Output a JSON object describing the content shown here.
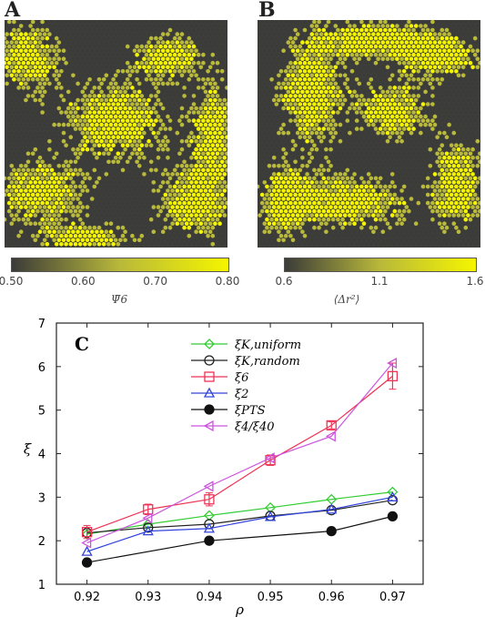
{
  "panels": {
    "a_label": "A",
    "b_label": "B",
    "c_label": "C"
  },
  "colorbar_a": {
    "label": "Ψ̄6",
    "ticks": [
      "0.50",
      "0.60",
      "0.70",
      "0.80"
    ],
    "range": [
      0.5,
      0.8
    ],
    "colors": [
      "#3b3b39",
      "#b9b93a",
      "#f5f500"
    ]
  },
  "colorbar_b": {
    "label": "⟨Δr²⟩",
    "ticks": [
      "0.6",
      "1.1",
      "1.6"
    ],
    "range": [
      0.6,
      1.6
    ],
    "colors": [
      "#3b3b39",
      "#b9b93a",
      "#f5f500"
    ]
  },
  "chart_data": {
    "type": "line",
    "xlabel": "ρ",
    "ylabel": "ξ",
    "xlim": [
      0.915,
      0.975
    ],
    "ylim": [
      1,
      7
    ],
    "xticks": [
      0.92,
      0.93,
      0.94,
      0.95,
      0.96,
      0.97
    ],
    "yticks": [
      1,
      2,
      3,
      4,
      5,
      6,
      7
    ],
    "grid": false,
    "legend_position": "top-center",
    "x": [
      0.92,
      0.93,
      0.94,
      0.95,
      0.96,
      0.97
    ],
    "series": [
      {
        "name": "ξK,uniform",
        "values": [
          2.15,
          2.38,
          2.58,
          2.76,
          2.95,
          3.12
        ],
        "color": "#33cc33",
        "marker": "diamond"
      },
      {
        "name": "ξK,random",
        "values": [
          2.18,
          2.3,
          2.38,
          2.57,
          2.7,
          2.93
        ],
        "color": "#222222",
        "marker": "circle-open"
      },
      {
        "name": "ξ6",
        "values": [
          2.2,
          2.72,
          2.95,
          3.85,
          4.65,
          5.78
        ],
        "color": "#ee3355",
        "marker": "square",
        "errors": [
          0.15,
          0.12,
          0.15,
          0.12,
          0.08,
          0.3
        ]
      },
      {
        "name": "ξ2",
        "values": [
          1.75,
          2.22,
          2.28,
          2.55,
          2.72,
          3.0
        ],
        "color": "#3344dd",
        "marker": "triangle-up"
      },
      {
        "name": "ξPTS",
        "values": [
          1.5,
          null,
          2.0,
          null,
          2.22,
          2.56
        ],
        "color": "#111111",
        "marker": "circle-filled"
      },
      {
        "name": "ξ4/ξ40",
        "values": [
          1.95,
          2.52,
          3.25,
          3.9,
          4.4,
          6.08
        ],
        "color": "#cc55dd",
        "marker": "triangle-left"
      }
    ]
  }
}
